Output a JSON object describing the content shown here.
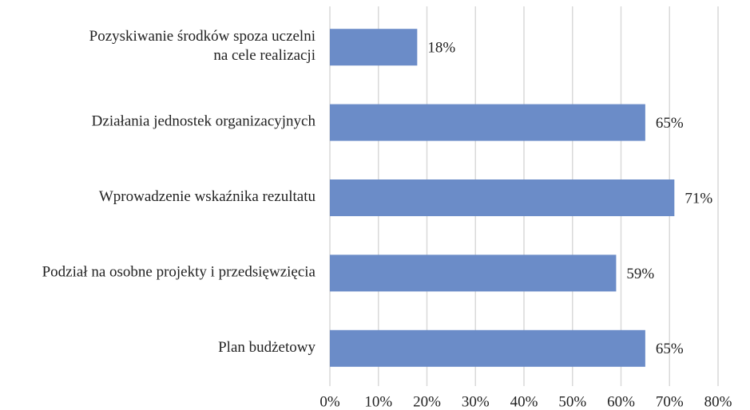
{
  "chart_data": {
    "type": "barh",
    "categories": [
      "Pozyskiwanie środków spoza uczelni\nna cele realizacji",
      "Działania jednostek organizacyjnych",
      "Wprowadzenie wskaźnika rezultatu",
      "Podział na osobne projekty i przedsięwzięcia",
      "Plan budżetowy"
    ],
    "values": [
      18,
      65,
      71,
      59,
      65
    ],
    "value_labels": [
      "18%",
      "65%",
      "71%",
      "59%",
      "65%"
    ],
    "color": "#6b8cc8",
    "xlim": [
      0,
      80
    ],
    "xticks": [
      {
        "value": 0,
        "label": "0%"
      },
      {
        "value": 10,
        "label": "10%"
      },
      {
        "value": 20,
        "label": "20%"
      },
      {
        "value": 30,
        "label": "30%"
      },
      {
        "value": 40,
        "label": "40%"
      },
      {
        "value": 50,
        "label": "50%"
      },
      {
        "value": 60,
        "label": "60%"
      },
      {
        "value": 70,
        "label": "70%"
      },
      {
        "value": 80,
        "label": "80%"
      }
    ],
    "grid": true
  }
}
